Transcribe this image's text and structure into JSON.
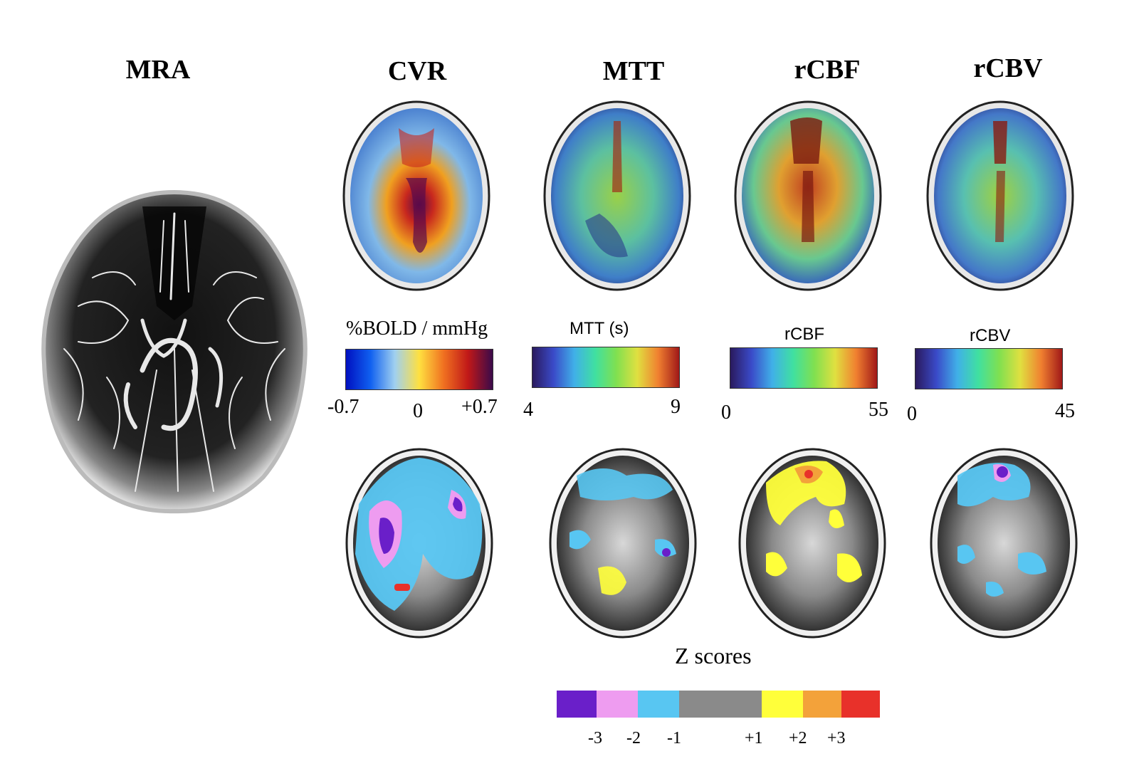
{
  "titles": {
    "mra": "MRA",
    "cvr": "CVR",
    "mtt": "MTT",
    "rcbf": "rCBF",
    "rcbv": "rCBV"
  },
  "colorbars": {
    "cvr": {
      "label": "%BOLD / mmHg",
      "min": "-0.7",
      "mid": "0",
      "max": "+0.7"
    },
    "mtt": {
      "label": "MTT (s)",
      "min": "4",
      "max": "9"
    },
    "rcbf": {
      "label": "rCBF",
      "min": "0",
      "max": "55"
    },
    "rcbv": {
      "label": "rCBV",
      "min": "0",
      "max": "45"
    }
  },
  "zscores": {
    "label": "Z scores",
    "colors": [
      "#6a1fc9",
      "#ee9cf0",
      "#58c6f2",
      "#8a8a8a",
      "#ffff3a",
      "#f3a23a",
      "#e8312a"
    ],
    "ticks": [
      "-3",
      "-2",
      "-1",
      "+1",
      "+2",
      "+3"
    ]
  }
}
